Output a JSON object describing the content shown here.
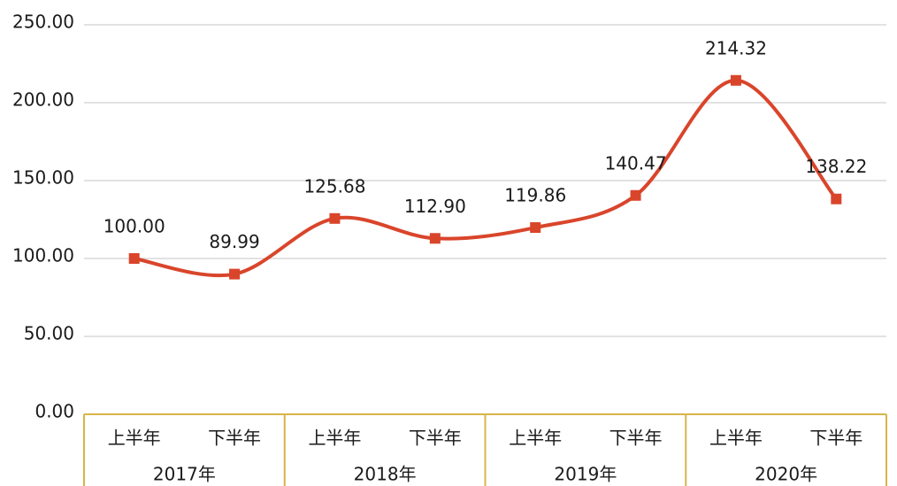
{
  "chart_data": {
    "type": "line",
    "categories": [
      "上半年",
      "下半年",
      "上半年",
      "下半年",
      "上半年",
      "下半年",
      "上半年",
      "下半年"
    ],
    "groups": [
      "2017年",
      "2018年",
      "2019年",
      "2020年"
    ],
    "series": [
      {
        "color": "#d9452b",
        "values": [
          100.0,
          89.99,
          125.68,
          112.9,
          119.86,
          140.47,
          214.32,
          138.22
        ],
        "value_labels": [
          "100.00",
          "89.99",
          "125.68",
          "112.90",
          "119.86",
          "140.47",
          "214.32",
          "138.22"
        ]
      }
    ],
    "ylim": [
      0,
      250
    ],
    "yticks": [
      {
        "value": 0,
        "label": "0.00"
      },
      {
        "value": 50,
        "label": "50.00"
      },
      {
        "value": 100,
        "label": "100.00"
      },
      {
        "value": 150,
        "label": "150.00"
      },
      {
        "value": 200,
        "label": "200.00"
      },
      {
        "value": 250,
        "label": "250.00"
      }
    ],
    "grid": true,
    "smooth": true
  }
}
